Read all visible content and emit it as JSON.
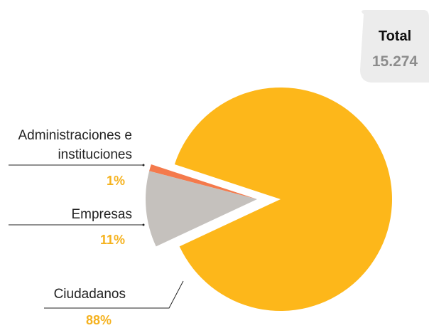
{
  "chart_data": {
    "type": "pie",
    "categories": [
      "Administraciones e instituciones",
      "Empresas",
      "Ciudadanos"
    ],
    "values": [
      1,
      11,
      88
    ],
    "value_labels": [
      "1%",
      "11%",
      "88%"
    ],
    "colors": [
      "#f47a4c",
      "#c5c1bd",
      "#fdb71a"
    ],
    "total_title": "Total",
    "total_value": "15.274"
  }
}
